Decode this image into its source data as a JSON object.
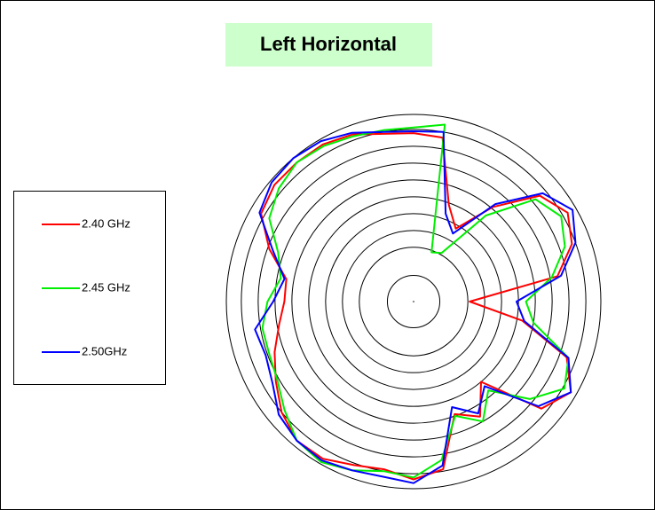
{
  "chart_data": {
    "type": "polar",
    "title": "Left Horizontal",
    "theta": [
      0,
      10,
      20,
      30,
      40,
      50,
      60,
      70,
      80,
      90,
      100,
      110,
      120,
      130,
      140,
      150,
      160,
      170,
      180,
      190,
      200,
      210,
      220,
      230,
      240,
      250,
      260,
      270,
      280,
      290,
      300,
      310,
      320,
      330,
      340,
      350
    ],
    "rlim": [
      0,
      10
    ],
    "rticks": [
      1.4,
      2.9,
      3.8,
      4.7,
      5.6,
      6.5,
      7.4,
      8.3,
      9.2,
      10
    ],
    "grid": true,
    "legend": "left",
    "series": [
      {
        "name": "2.40 GHz",
        "color": "#ff0000",
        "r": [
          3.0,
          7.8,
          9.0,
          9.5,
          8.8,
          6.6,
          4.5,
          5.5,
          8.9,
          9.0,
          9.1,
          9.5,
          9.7,
          9.7,
          9.7,
          9.4,
          8.2,
          6.9,
          6.9,
          7.3,
          7.9,
          8.5,
          9.2,
          9.7,
          9.7,
          9.3,
          9.1,
          9.5,
          9.1,
          6.4,
          7.1,
          5.6,
          8.9,
          9.7,
          8.7,
          5.9
        ]
      },
      {
        "name": "2.45 GHz",
        "color": "#00ee00",
        "r": [
          6.0,
          7.5,
          8.6,
          9.1,
          8.5,
          6.0,
          3.0,
          2.8,
          9.6,
          9.3,
          9.3,
          9.4,
          9.6,
          9.7,
          9.4,
          8.9,
          7.7,
          7.2,
          7.8,
          8.2,
          8.2,
          8.4,
          9.0,
          9.7,
          9.9,
          9.6,
          9.2,
          9.4,
          8.6,
          6.5,
          7.4,
          6.2,
          8.1,
          9.3,
          8.8,
          6.5
        ]
      },
      {
        "name": "2.50GHz",
        "color": "#0000ff",
        "r": [
          5.5,
          8.0,
          9.2,
          9.8,
          9.0,
          6.8,
          4.2,
          5.0,
          9.2,
          9.1,
          9.2,
          9.6,
          9.9,
          10.0,
          9.9,
          9.5,
          8.0,
          7.0,
          7.5,
          8.6,
          8.4,
          8.7,
          9.4,
          9.7,
          9.8,
          9.6,
          9.5,
          9.7,
          8.9,
          6.0,
          6.9,
          5.9,
          8.7,
          9.7,
          8.8,
          6.0
        ]
      }
    ]
  }
}
